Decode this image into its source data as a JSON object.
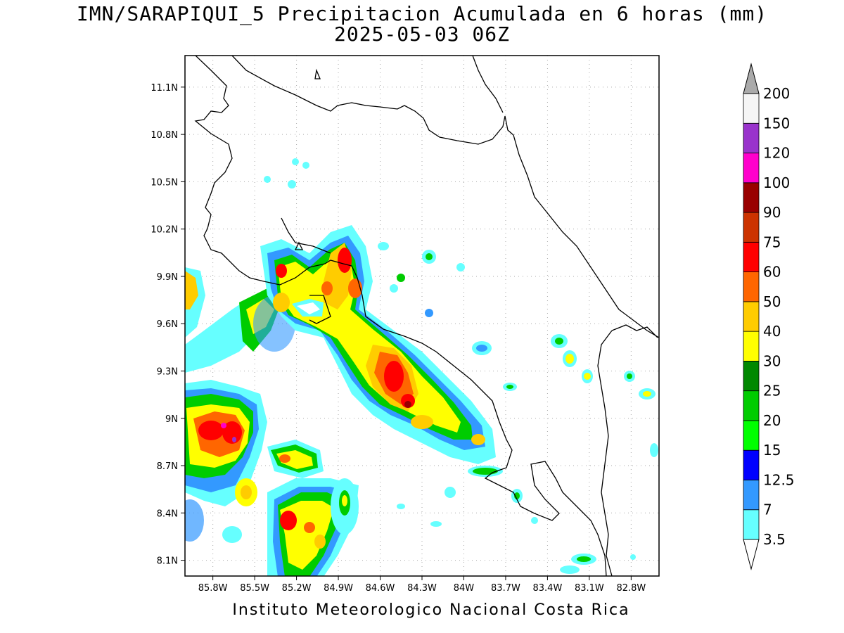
{
  "title": {
    "line1": "IMN/SARAPIQUI_5 Precipitacion Acumulada en 6 horas (mm)",
    "line2": "2025-05-03 06Z"
  },
  "footer": "Instituto Meteorologico Nacional Costa Rica",
  "map": {
    "lon_range": [
      -86.0,
      -82.6
    ],
    "lat_range": [
      8.0,
      11.3
    ],
    "lon_ticks": [
      "85.8W",
      "85.5W",
      "85.2W",
      "84.9W",
      "84.6W",
      "84.3W",
      "84W",
      "83.7W",
      "83.4W",
      "83.1W",
      "82.8W"
    ],
    "lat_ticks": [
      "11.1N",
      "10.8N",
      "10.5N",
      "10.2N",
      "9.9N",
      "9.6N",
      "9.3N",
      "9N",
      "8.7N",
      "8.4N",
      "8.1N"
    ],
    "grid": "dotted"
  },
  "colorbar": {
    "labels": [
      "3.5",
      "7",
      "12.5",
      "15",
      "20",
      "25",
      "30",
      "40",
      "50",
      "60",
      "75",
      "90",
      "100",
      "120",
      "150",
      "200"
    ],
    "colors": [
      "#ffffff",
      "#66ffff",
      "#3399ff",
      "#0000ff",
      "#00ff00",
      "#00cc00",
      "#008800",
      "#ffff00",
      "#ffcc00",
      "#ff6600",
      "#ff0000",
      "#cc3300",
      "#990000",
      "#ff00cc",
      "#9933cc",
      "#f5f5f5",
      "#aaaaaa"
    ]
  }
}
